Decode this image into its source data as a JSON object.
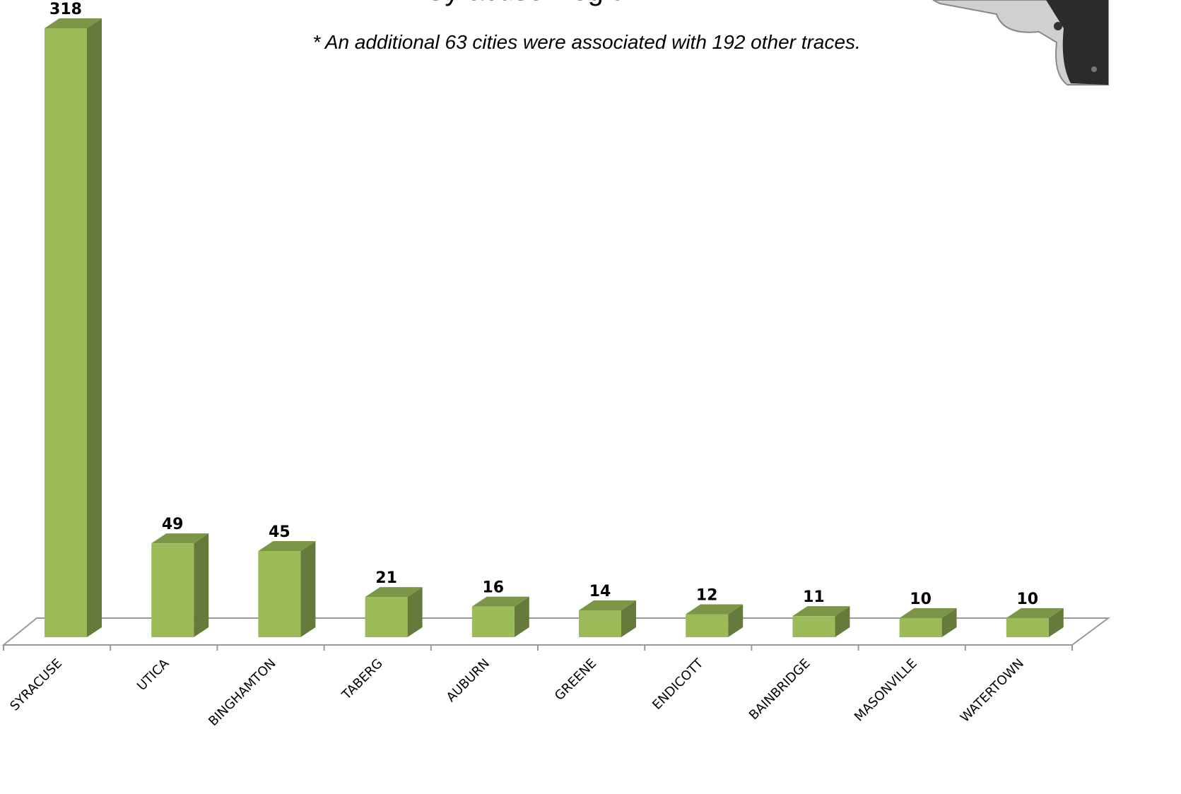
{
  "chart_data": {
    "type": "bar3d",
    "title": "Syracuse Region",
    "subtitle": "* An additional 63 cities were associated with 192 other traces.",
    "categories": [
      "SYRACUSE",
      "UTICA",
      "BINGHAMTON",
      "TABERG",
      "AUBURN",
      "GREENE",
      "ENDICOTT",
      "BAINBRIDGE",
      "MASONVILLE",
      "WATERTOWN"
    ],
    "values": [
      318,
      49,
      45,
      21,
      16,
      14,
      12,
      11,
      10,
      10
    ],
    "color": "#9bbb59"
  }
}
